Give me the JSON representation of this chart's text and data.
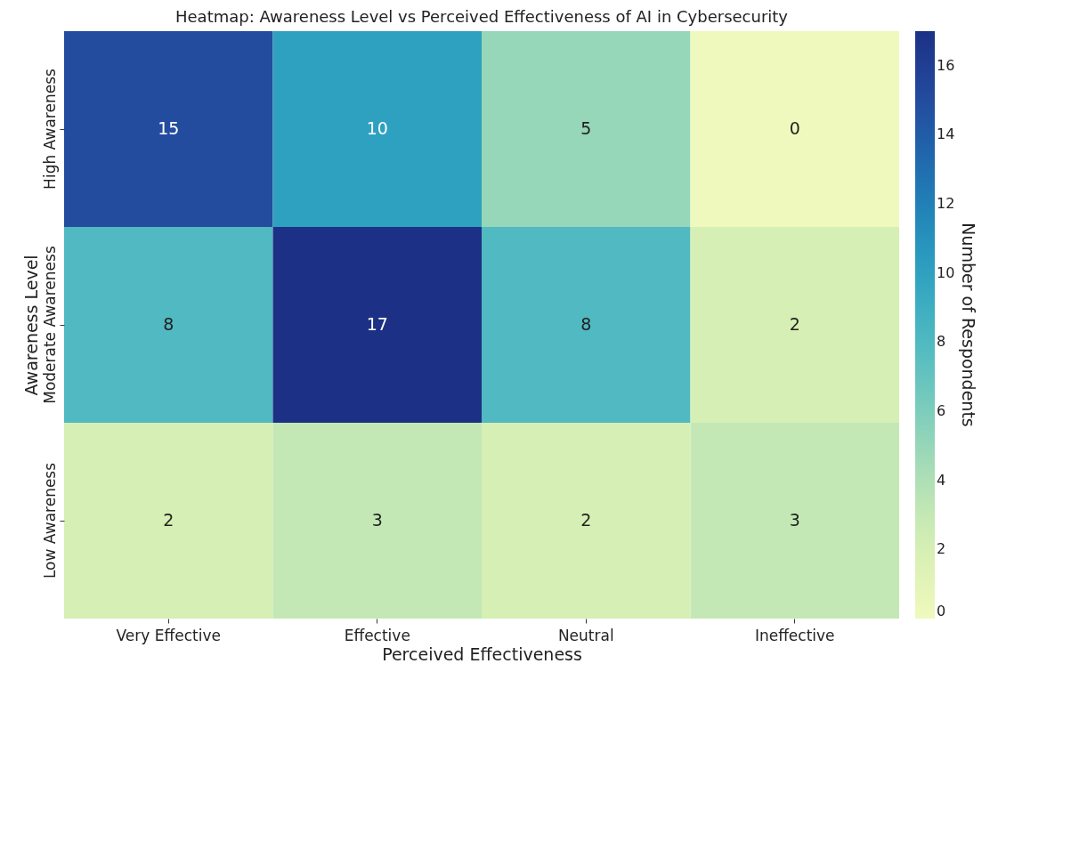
{
  "chart_data": {
    "type": "heatmap",
    "title": "Heatmap: Awareness Level vs Perceived Effectiveness of AI in Cybersecurity",
    "xlabel": "Perceived Effectiveness",
    "ylabel": "Awareness Level",
    "clabel": "Number of Respondents",
    "categories": [
      "Very Effective",
      "Effective",
      "Neutral",
      "Ineffective"
    ],
    "y_categories": [
      "High Awareness",
      "Moderate Awareness",
      "Low Awareness"
    ],
    "cells": [
      [
        15,
        10,
        5,
        0
      ],
      [
        8,
        17,
        8,
        2
      ],
      [
        2,
        3,
        2,
        3
      ]
    ],
    "clim": [
      0,
      17
    ],
    "cticks": [
      0,
      2,
      4,
      6,
      8,
      10,
      12,
      14,
      16
    ],
    "data_labels": true
  }
}
